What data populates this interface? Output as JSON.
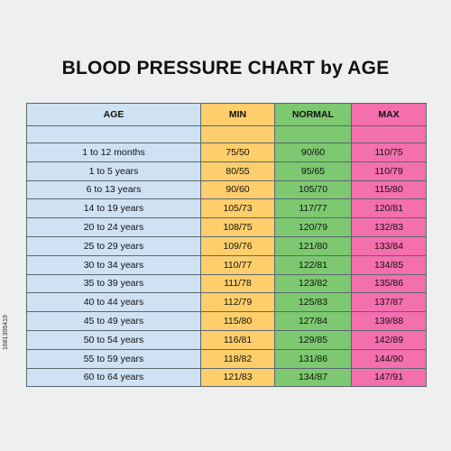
{
  "chart_data": {
    "type": "table",
    "title": "BLOOD PRESSURE CHART by AGE",
    "columns": [
      "AGE",
      "MIN",
      "NORMAL",
      "MAX"
    ],
    "rows": [
      [
        "1 to 12 months",
        "75/50",
        "90/60",
        "110/75"
      ],
      [
        "1 to 5 years",
        "80/55",
        "95/65",
        "110/79"
      ],
      [
        "6 to 13 years",
        "90/60",
        "105/70",
        "115/80"
      ],
      [
        "14 to 19 years",
        "105/73",
        "117/77",
        "120/81"
      ],
      [
        "20 to 24 years",
        "108/75",
        "120/79",
        "132/83"
      ],
      [
        "25 to 29 years",
        "109/76",
        "121/80",
        "133/84"
      ],
      [
        "30 to 34 years",
        "110/77",
        "122/81",
        "134/85"
      ],
      [
        "35 to 39 years",
        "111/78",
        "123/82",
        "135/86"
      ],
      [
        "40 to 44 years",
        "112/79",
        "125/83",
        "137/87"
      ],
      [
        "45 to 49 years",
        "115/80",
        "127/84",
        "139/88"
      ],
      [
        "50 to 54 years",
        "116/81",
        "129/85",
        "142/89"
      ],
      [
        "55 to 59 years",
        "118/82",
        "131/86",
        "144/90"
      ],
      [
        "60 to 64 years",
        "121/83",
        "134/87",
        "147/91"
      ]
    ],
    "column_colors": {
      "AGE": "#cfe2f3",
      "MIN": "#fdce6b",
      "NORMAL": "#7dc870",
      "MAX": "#f46fae"
    }
  },
  "side_text": "1681306419"
}
